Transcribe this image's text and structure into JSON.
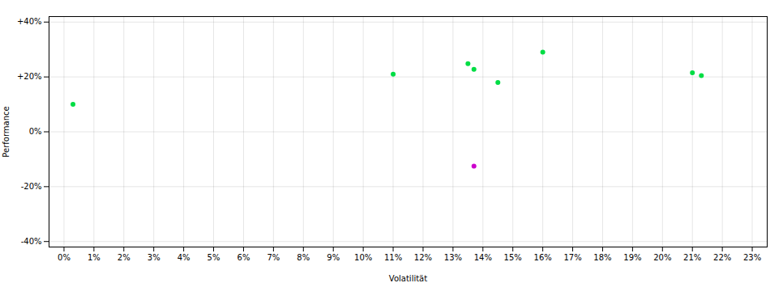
{
  "chart_data": {
    "type": "scatter",
    "xlabel": "Volatilität",
    "ylabel": "Performance",
    "xlim": [
      -0.005,
      0.235
    ],
    "ylim": [
      -0.42,
      0.42
    ],
    "xticks": [
      {
        "value": 0.0,
        "label": "0%"
      },
      {
        "value": 0.01,
        "label": "1%"
      },
      {
        "value": 0.02,
        "label": "2%"
      },
      {
        "value": 0.03,
        "label": "3%"
      },
      {
        "value": 0.04,
        "label": "4%"
      },
      {
        "value": 0.05,
        "label": "5%"
      },
      {
        "value": 0.06,
        "label": "6%"
      },
      {
        "value": 0.07,
        "label": "7%"
      },
      {
        "value": 0.08,
        "label": "8%"
      },
      {
        "value": 0.09,
        "label": "9%"
      },
      {
        "value": 0.1,
        "label": "10%"
      },
      {
        "value": 0.11,
        "label": "11%"
      },
      {
        "value": 0.12,
        "label": "12%"
      },
      {
        "value": 0.13,
        "label": "13%"
      },
      {
        "value": 0.14,
        "label": "14%"
      },
      {
        "value": 0.15,
        "label": "15%"
      },
      {
        "value": 0.16,
        "label": "16%"
      },
      {
        "value": 0.17,
        "label": "17%"
      },
      {
        "value": 0.18,
        "label": "18%"
      },
      {
        "value": 0.19,
        "label": "19%"
      },
      {
        "value": 0.2,
        "label": "20%"
      },
      {
        "value": 0.21,
        "label": "21%"
      },
      {
        "value": 0.22,
        "label": "22%"
      },
      {
        "value": 0.23,
        "label": "23%"
      }
    ],
    "yticks": [
      {
        "value": -0.4,
        "label": "-40%"
      },
      {
        "value": -0.2,
        "label": "-20%"
      },
      {
        "value": 0.0,
        "label": "0%"
      },
      {
        "value": 0.2,
        "label": "+20%"
      },
      {
        "value": 0.4,
        "label": "+40%"
      }
    ],
    "grid": true,
    "series": [
      {
        "color": "#00dd44",
        "x": [
          0.003,
          0.11,
          0.135,
          0.137,
          0.145,
          0.16,
          0.21,
          0.213
        ],
        "values": [
          0.1,
          0.21,
          0.248,
          0.228,
          0.18,
          0.29,
          0.215,
          0.205
        ]
      },
      {
        "color": "#cc00cc",
        "x": [
          0.137
        ],
        "values": [
          -0.125
        ]
      }
    ]
  }
}
